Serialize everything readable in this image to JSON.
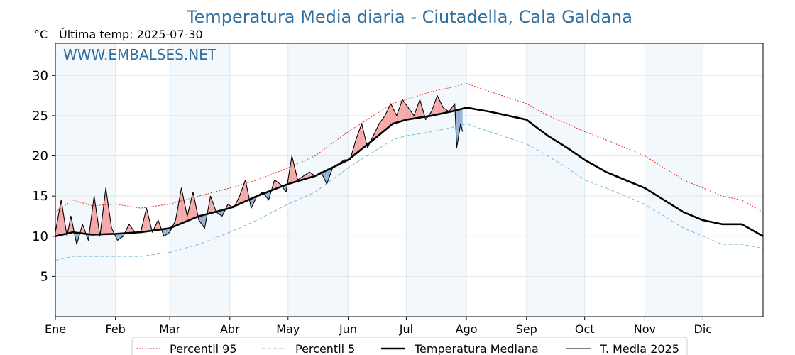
{
  "chart_data": {
    "type": "line",
    "title": "Temperatura Media diaria - Ciutadella, Cala Galdana",
    "unit": "°C",
    "last_temp_text": "Última temp: 2025-07-30",
    "watermark": "WWW.EMBALSES.NET",
    "ylim": [
      0,
      34
    ],
    "xlim": [
      1,
      366
    ],
    "yticks": [
      5,
      10,
      15,
      20,
      25,
      30
    ],
    "grid": true,
    "legend_placement": "bottom",
    "months": [
      {
        "label": "Ene",
        "day": 1
      },
      {
        "label": "Feb",
        "day": 32
      },
      {
        "label": "Mar",
        "day": 60
      },
      {
        "label": "Abr",
        "day": 91
      },
      {
        "label": "May",
        "day": 121
      },
      {
        "label": "Jun",
        "day": 152
      },
      {
        "label": "Jul",
        "day": 182
      },
      {
        "label": "Ago",
        "day": 213
      },
      {
        "label": "Sep",
        "day": 244
      },
      {
        "label": "Oct",
        "day": 274
      },
      {
        "label": "Nov",
        "day": 305
      },
      {
        "label": "Dic",
        "day": 335
      }
    ],
    "series": [
      {
        "name": "Percentil 95",
        "style": "dotted",
        "color": "#e8312f",
        "days": [
          1,
          10,
          20,
          32,
          45,
          60,
          75,
          91,
          105,
          121,
          135,
          152,
          165,
          175,
          182,
          195,
          205,
          213,
          225,
          244,
          255,
          265,
          274,
          285,
          295,
          305,
          315,
          325,
          335,
          345,
          355,
          366
        ],
        "values": [
          13.0,
          14.5,
          13.8,
          14.0,
          13.5,
          14.0,
          15.0,
          16.0,
          17.0,
          18.5,
          20.0,
          23.0,
          25.0,
          26.5,
          27.0,
          28.0,
          28.5,
          29.0,
          28.0,
          26.5,
          25.0,
          24.0,
          23.0,
          22.0,
          21.0,
          20.0,
          18.5,
          17.0,
          16.0,
          15.0,
          14.5,
          13.0
        ]
      },
      {
        "name": "Percentil 5",
        "style": "dashed",
        "color": "#7fbcd0",
        "days": [
          1,
          10,
          20,
          32,
          45,
          60,
          75,
          91,
          105,
          121,
          135,
          152,
          165,
          175,
          182,
          195,
          205,
          213,
          225,
          244,
          255,
          265,
          274,
          285,
          295,
          305,
          315,
          325,
          335,
          345,
          355,
          366
        ],
        "values": [
          7.0,
          7.5,
          7.5,
          7.5,
          7.5,
          8.0,
          9.0,
          10.5,
          12.0,
          14.0,
          15.5,
          18.5,
          20.5,
          22.0,
          22.5,
          23.0,
          23.5,
          24.0,
          23.0,
          21.5,
          20.0,
          18.5,
          17.0,
          16.0,
          15.0,
          14.0,
          12.5,
          11.0,
          10.0,
          9.0,
          9.0,
          8.5
        ]
      },
      {
        "name": "Temperatura Mediana",
        "style": "solid-thick",
        "color": "#000000",
        "days": [
          1,
          10,
          20,
          32,
          45,
          60,
          75,
          91,
          105,
          121,
          135,
          152,
          165,
          175,
          182,
          195,
          205,
          213,
          225,
          244,
          255,
          265,
          274,
          285,
          295,
          305,
          315,
          325,
          335,
          345,
          355,
          366
        ],
        "values": [
          10.0,
          10.5,
          10.2,
          10.3,
          10.5,
          11.0,
          12.5,
          13.5,
          15.0,
          16.5,
          17.5,
          19.5,
          22.0,
          24.0,
          24.5,
          25.0,
          25.5,
          26.0,
          25.5,
          24.5,
          22.5,
          21.0,
          19.5,
          18.0,
          17.0,
          16.0,
          14.5,
          13.0,
          12.0,
          11.5,
          11.5,
          10.0
        ]
      },
      {
        "name": "T. Media 2025",
        "style": "solid-thin",
        "color": "#000000",
        "days": [
          1,
          4,
          7,
          9,
          12,
          15,
          18,
          21,
          24,
          27,
          30,
          33,
          36,
          39,
          42,
          45,
          48,
          51,
          54,
          57,
          60,
          63,
          66,
          69,
          72,
          75,
          78,
          81,
          84,
          87,
          90,
          93,
          96,
          99,
          102,
          105,
          108,
          111,
          114,
          117,
          120,
          123,
          126,
          129,
          132,
          135,
          138,
          141,
          144,
          147,
          150,
          153,
          156,
          159,
          162,
          165,
          168,
          171,
          174,
          177,
          180,
          183,
          186,
          189,
          192,
          195,
          198,
          201,
          204,
          207,
          208,
          210,
          211
        ],
        "values": [
          10.5,
          14.5,
          10.0,
          12.5,
          9.0,
          11.5,
          9.5,
          15.0,
          10.0,
          16.0,
          11.0,
          9.5,
          10.0,
          11.5,
          10.5,
          10.5,
          13.5,
          10.5,
          12.0,
          10.0,
          10.5,
          12.0,
          16.0,
          12.5,
          15.5,
          12.0,
          11.0,
          15.0,
          13.0,
          12.5,
          14.0,
          13.5,
          15.0,
          17.0,
          13.5,
          15.0,
          15.5,
          14.5,
          17.0,
          16.5,
          15.5,
          20.0,
          17.0,
          17.5,
          18.0,
          17.5,
          18.0,
          16.5,
          18.5,
          19.0,
          19.5,
          19.5,
          22.0,
          24.0,
          21.0,
          22.5,
          24.0,
          25.0,
          26.5,
          25.0,
          27.0,
          26.0,
          25.0,
          27.0,
          24.5,
          25.5,
          27.5,
          26.0,
          25.5,
          26.5,
          21.0,
          24.0,
          23.0
        ]
      }
    ]
  }
}
